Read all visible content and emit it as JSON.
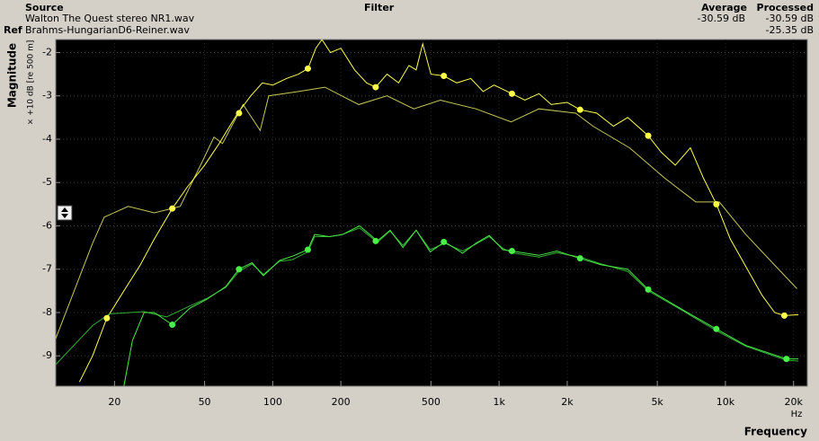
{
  "header": {
    "source_label": "Source",
    "filter_label": "Filter",
    "average_label": "Average",
    "processed_label": "Processed",
    "ref_label": "Ref",
    "source_file": "Walton The Quest stereo NR1.wav",
    "source_average": "-30.59 dB",
    "source_processed": "-30.59 dB",
    "ref_file": "Brahms-HungarianD6-Reiner.wav",
    "ref_processed": "-25.35 dB"
  },
  "chart_data": {
    "type": "line",
    "ylabel": "Magnitude",
    "ylabel_unit": "× +10 dB [re 500 m]",
    "xlabel": "Frequency",
    "xunit": "Hz",
    "xscale": "log",
    "xlim": [
      11,
      23000
    ],
    "ylim": [
      -9.7,
      -1.7
    ],
    "grid": true,
    "xticks": [
      20,
      50,
      100,
      200,
      500,
      {
        "value": 1000,
        "label": "1k"
      },
      {
        "value": 2000,
        "label": "2k"
      },
      {
        "value": 5000,
        "label": "5k"
      },
      {
        "value": 10000,
        "label": "10k"
      },
      {
        "value": 20000,
        "label": "20k"
      }
    ],
    "yticks": [
      -2,
      -3,
      -4,
      -5,
      -6,
      -7,
      -8,
      -9
    ],
    "series": [
      {
        "color": "#c8c858",
        "style": "line",
        "x": [
          11,
          16,
          18,
          23,
          30,
          39,
          49,
          55,
          60,
          74,
          88,
          96,
          130,
          170,
          240,
          320,
          420,
          550,
          790,
          1130,
          1500,
          2180,
          2600,
          3770,
          5400,
          7400,
          9400,
          12300,
          17900,
          20700
        ],
        "values": [
          -8.6,
          -6.4,
          -5.8,
          -5.55,
          -5.7,
          -5.55,
          -4.5,
          -3.95,
          -4.1,
          -3.2,
          -3.8,
          -3.0,
          -2.9,
          -2.8,
          -3.2,
          -3.0,
          -3.3,
          -3.1,
          -3.3,
          -3.6,
          -3.3,
          -3.4,
          -3.7,
          -4.2,
          -4.9,
          -5.45,
          -5.45,
          -6.2,
          -7.1,
          -7.45
        ]
      },
      {
        "color": "#ffff48",
        "style": "line",
        "x": [
          14,
          16,
          18.5,
          22,
          26,
          30,
          36,
          42,
          50,
          58,
          70,
          80,
          90,
          100,
          115,
          130,
          143,
          155,
          165,
          180,
          200,
          230,
          260,
          285,
          320,
          360,
          400,
          430,
          460,
          500,
          570,
          650,
          750,
          850,
          950,
          1140,
          1300,
          1500,
          1700,
          2000,
          2280,
          2700,
          3200,
          3700,
          4560,
          5200,
          6000,
          7000,
          8000,
          9120,
          10500,
          12500,
          14500,
          16500,
          18200,
          21000
        ],
        "values": [
          -9.6,
          -9.0,
          -8.13,
          -7.5,
          -6.9,
          -6.3,
          -5.6,
          -5.1,
          -4.6,
          -4.1,
          -3.4,
          -3.0,
          -2.7,
          -2.75,
          -2.6,
          -2.5,
          -2.37,
          -1.9,
          -1.7,
          -2.0,
          -1.9,
          -2.4,
          -2.7,
          -2.8,
          -2.5,
          -2.7,
          -2.3,
          -2.4,
          -1.8,
          -2.5,
          -2.54,
          -2.7,
          -2.6,
          -2.9,
          -2.75,
          -2.95,
          -3.1,
          -2.95,
          -3.2,
          -3.15,
          -3.32,
          -3.4,
          -3.7,
          -3.5,
          -3.92,
          -4.3,
          -4.6,
          -4.2,
          -4.9,
          -5.5,
          -6.3,
          -7.0,
          -7.6,
          -8.0,
          -8.07,
          -8.05
        ]
      },
      {
        "color": "#30b030",
        "style": "line",
        "x": [
          11,
          16,
          19,
          27,
          34,
          43,
          51,
          62,
          71,
          81,
          91,
          107,
          122,
          143,
          153,
          178,
          203,
          242,
          290,
          330,
          376,
          430,
          496,
          575,
          690,
          790,
          905,
          1040,
          1140,
          1500,
          1800,
          2280,
          2830,
          3700,
          4560,
          6440,
          9120,
          12300,
          18600,
          21000
        ],
        "values": [
          -9.2,
          -8.3,
          -8.03,
          -7.98,
          -8.1,
          -7.85,
          -7.68,
          -7.42,
          -7.05,
          -6.88,
          -7.12,
          -6.82,
          -6.78,
          -6.6,
          -6.25,
          -6.25,
          -6.2,
          -6.05,
          -6.38,
          -6.12,
          -6.45,
          -6.1,
          -6.55,
          -6.4,
          -6.58,
          -6.42,
          -6.25,
          -6.52,
          -6.62,
          -6.72,
          -6.62,
          -6.72,
          -6.88,
          -7.05,
          -7.5,
          -7.95,
          -8.42,
          -8.78,
          -9.1,
          -9.12
        ]
      },
      {
        "color": "#48e848",
        "style": "line",
        "x": [
          22,
          24,
          27,
          30,
          36,
          43,
          51,
          62,
          71,
          81,
          91,
          107,
          122,
          143,
          153,
          178,
          203,
          242,
          290,
          330,
          376,
          430,
          496,
          575,
          690,
          790,
          905,
          1040,
          1140,
          1500,
          1800,
          2280,
          2830,
          3700,
          4560,
          6440,
          9120,
          12300,
          18600,
          21000
        ],
        "values": [
          -9.7,
          -8.65,
          -8.0,
          -8.0,
          -8.28,
          -7.9,
          -7.7,
          -7.4,
          -7.0,
          -6.85,
          -7.15,
          -6.8,
          -6.7,
          -6.55,
          -6.2,
          -6.25,
          -6.2,
          -6.0,
          -6.35,
          -6.1,
          -6.5,
          -6.1,
          -6.6,
          -6.37,
          -6.63,
          -6.4,
          -6.22,
          -6.55,
          -6.58,
          -6.68,
          -6.58,
          -6.75,
          -6.9,
          -7.0,
          -7.47,
          -7.93,
          -8.38,
          -8.76,
          -9.07,
          -9.07
        ]
      },
      {
        "color": "#ffff48",
        "style": "markers",
        "x": [
          18.5,
          36,
          71,
          143,
          285,
          570,
          1140,
          2280,
          4560,
          9120,
          18200
        ],
        "values": [
          -8.13,
          -5.6,
          -3.4,
          -2.37,
          -2.8,
          -2.54,
          -2.95,
          -3.32,
          -3.92,
          -5.5,
          -8.07
        ]
      },
      {
        "color": "#48f048",
        "style": "markers",
        "x": [
          36,
          71,
          143,
          285,
          570,
          1140,
          2280,
          4560,
          9120,
          18600
        ],
        "values": [
          -8.28,
          -7.0,
          -6.55,
          -6.35,
          -6.37,
          -6.58,
          -6.75,
          -7.47,
          -8.38,
          -9.07
        ]
      }
    ]
  }
}
